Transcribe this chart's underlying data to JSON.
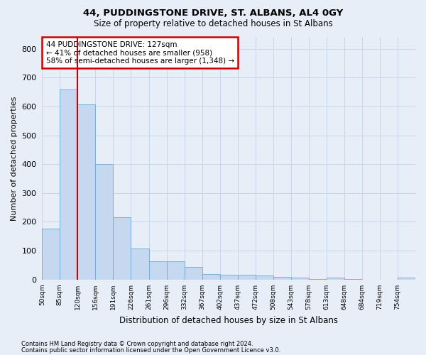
{
  "title": "44, PUDDINGSTONE DRIVE, ST. ALBANS, AL4 0GY",
  "subtitle": "Size of property relative to detached houses in St Albans",
  "xlabel": "Distribution of detached houses by size in St Albans",
  "ylabel": "Number of detached properties",
  "footnote1": "Contains HM Land Registry data © Crown copyright and database right 2024.",
  "footnote2": "Contains public sector information licensed under the Open Government Licence v3.0.",
  "bar_color": "#c5d8ef",
  "bar_edge_color": "#6aaad4",
  "grid_color": "#c8d4e8",
  "background_color": "#e8eef8",
  "annotation_text": "44 PUDDINGSTONE DRIVE: 127sqm\n← 41% of detached houses are smaller (958)\n58% of semi-detached houses are larger (1,348) →",
  "annotation_box_color": "#ffffff",
  "annotation_box_edge": "#cc0000",
  "vline_bin": 2,
  "vline_color": "#cc0000",
  "categories": [
    "50sqm",
    "85sqm",
    "120sqm",
    "156sqm",
    "191sqm",
    "226sqm",
    "261sqm",
    "296sqm",
    "332sqm",
    "367sqm",
    "402sqm",
    "437sqm",
    "472sqm",
    "508sqm",
    "543sqm",
    "578sqm",
    "613sqm",
    "648sqm",
    "684sqm",
    "719sqm",
    "754sqm"
  ],
  "values": [
    175,
    658,
    608,
    400,
    215,
    107,
    64,
    64,
    44,
    18,
    17,
    15,
    13,
    8,
    7,
    2,
    7,
    1,
    0,
    0,
    7
  ],
  "ylim": [
    0,
    840
  ],
  "yticks": [
    0,
    100,
    200,
    300,
    400,
    500,
    600,
    700,
    800
  ]
}
